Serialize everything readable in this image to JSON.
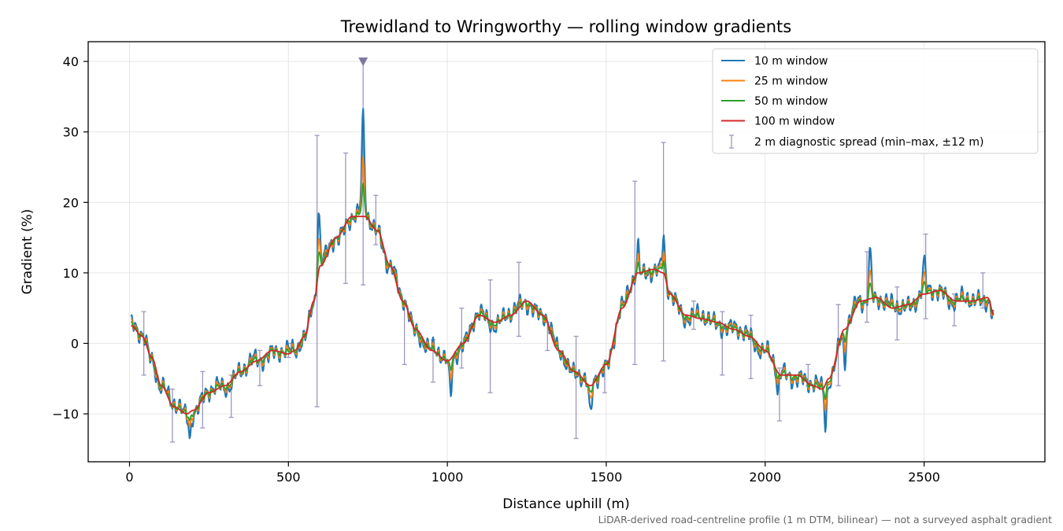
{
  "chart_data": {
    "type": "line",
    "title": "Trewidland to Wringworthy — rolling window gradients",
    "xlabel": "Distance uphill (m)",
    "ylabel": "Gradient (%)",
    "xlim": [
      -130,
      2880
    ],
    "ylim": [
      -16.8,
      42.8
    ],
    "xticks": [
      0,
      500,
      1000,
      1500,
      2000,
      2500
    ],
    "yticks": [
      -10,
      0,
      10,
      20,
      30,
      40
    ],
    "ytick_labels": [
      "−10",
      "0",
      "10",
      "20",
      "30",
      "40"
    ],
    "grid": true,
    "legend_position": "top-right",
    "footnote": "LiDAR-derived road-centreline profile (1 m DTM, bilinear) — not a surveyed asphalt gradient",
    "colors": {
      "w10": "#1f77b4",
      "w25": "#ff7f0e",
      "w50": "#2ca02c",
      "w100": "#d62728",
      "diagnostic": "#9d97bf",
      "marker": "#7f77a3"
    },
    "clipped_marker": {
      "x": 735,
      "y": 40,
      "label": ""
    },
    "base_profile": {
      "x": [
        5,
        40,
        70,
        100,
        140,
        180,
        200,
        250,
        300,
        350,
        400,
        450,
        500,
        520,
        550,
        580,
        600,
        650,
        700,
        740,
        780,
        820,
        860,
        900,
        950,
        1000,
        1050,
        1100,
        1150,
        1200,
        1250,
        1300,
        1350,
        1400,
        1450,
        1500,
        1550,
        1600,
        1650,
        1680,
        1700,
        1750,
        1800,
        1850,
        1900,
        1950,
        2000,
        2050,
        2100,
        2150,
        2180,
        2200,
        2250,
        2300,
        2350,
        2400,
        2450,
        2500,
        2550,
        2600,
        2650,
        2700,
        2720
      ],
      "y": [
        2.5,
        1,
        -2,
        -6,
        -9,
        -10,
        -9.5,
        -7,
        -6,
        -4,
        -2.5,
        -1,
        -1.5,
        -1,
        1,
        6,
        11,
        15,
        18,
        18,
        16,
        11,
        6,
        2,
        -1,
        -2.5,
        0,
        4,
        3,
        4,
        6,
        4,
        -1,
        -4,
        -6,
        -3,
        5,
        10,
        10.5,
        10,
        7,
        4,
        3.5,
        3,
        2,
        1,
        -1,
        -4.5,
        -4.5,
        -6,
        -6.5,
        -5,
        2,
        6,
        6.5,
        5,
        5.5,
        7,
        7.5,
        6,
        6,
        6.5,
        4
      ]
    },
    "series": [
      {
        "name": "10 m window",
        "key": "w10",
        "noise": 1.6,
        "stroke_width": 2.2
      },
      {
        "name": "25 m window",
        "key": "w25",
        "noise": 1.0,
        "stroke_width": 1.8
      },
      {
        "name": "50 m window",
        "key": "w50",
        "noise": 0.6,
        "stroke_width": 1.8
      },
      {
        "name": "100 m window",
        "key": "w100",
        "noise": 0,
        "stroke_width": 1.8
      }
    ],
    "spikes": [
      {
        "x": 735,
        "y": 31.5,
        "w": 6
      },
      {
        "x": 595,
        "y": 18.5,
        "w": 5
      },
      {
        "x": 1600,
        "y": 14,
        "w": 5
      },
      {
        "x": 1680,
        "y": 14.5,
        "w": 5
      },
      {
        "x": 2330,
        "y": 13.3,
        "w": 6
      },
      {
        "x": 2500,
        "y": 11,
        "w": 6
      },
      {
        "x": 190,
        "y": -13,
        "w": 5
      },
      {
        "x": 1450,
        "y": -11,
        "w": 6
      },
      {
        "x": 2190,
        "y": -11.5,
        "w": 5
      },
      {
        "x": 1010,
        "y": -7.5,
        "w": 5
      },
      {
        "x": 2040,
        "y": -7.5,
        "w": 5
      },
      {
        "x": 2250,
        "y": -3,
        "w": 5
      }
    ],
    "diagnostic_spread": {
      "name": "2 m diagnostic spread (min–max, ±12 m)",
      "bars": [
        {
          "x": 45,
          "min": -4.5,
          "max": 4.5
        },
        {
          "x": 135,
          "min": -14,
          "max": -6.5
        },
        {
          "x": 230,
          "min": -12,
          "max": -4
        },
        {
          "x": 320,
          "min": -10.5,
          "max": -4.5
        },
        {
          "x": 410,
          "min": -6,
          "max": -1
        },
        {
          "x": 500,
          "min": -2,
          "max": 0
        },
        {
          "x": 590,
          "min": -9,
          "max": 29.5
        },
        {
          "x": 680,
          "min": 8.5,
          "max": 27
        },
        {
          "x": 735,
          "min": 8.3,
          "max": 40
        },
        {
          "x": 775,
          "min": 14,
          "max": 21
        },
        {
          "x": 865,
          "min": -3,
          "max": 6
        },
        {
          "x": 955,
          "min": -5.5,
          "max": 0.5
        },
        {
          "x": 1045,
          "min": -3.5,
          "max": 5
        },
        {
          "x": 1135,
          "min": -7,
          "max": 9
        },
        {
          "x": 1225,
          "min": 1,
          "max": 11.5
        },
        {
          "x": 1315,
          "min": -1,
          "max": 3
        },
        {
          "x": 1405,
          "min": -13.5,
          "max": 1
        },
        {
          "x": 1495,
          "min": -7,
          "max": -3
        },
        {
          "x": 1590,
          "min": -3,
          "max": 23
        },
        {
          "x": 1680,
          "min": -2.5,
          "max": 28.5
        },
        {
          "x": 1775,
          "min": 2,
          "max": 6
        },
        {
          "x": 1865,
          "min": -4.5,
          "max": 4.5
        },
        {
          "x": 1955,
          "min": -5,
          "max": 4
        },
        {
          "x": 2045,
          "min": -11,
          "max": -3.5
        },
        {
          "x": 2135,
          "min": -6,
          "max": -3
        },
        {
          "x": 2230,
          "min": -6,
          "max": 5.5
        },
        {
          "x": 2320,
          "min": 3,
          "max": 13
        },
        {
          "x": 2415,
          "min": 0.5,
          "max": 8
        },
        {
          "x": 2505,
          "min": 3.5,
          "max": 15.5
        },
        {
          "x": 2595,
          "min": 2.5,
          "max": 7
        },
        {
          "x": 2685,
          "min": 5,
          "max": 10
        }
      ]
    }
  }
}
